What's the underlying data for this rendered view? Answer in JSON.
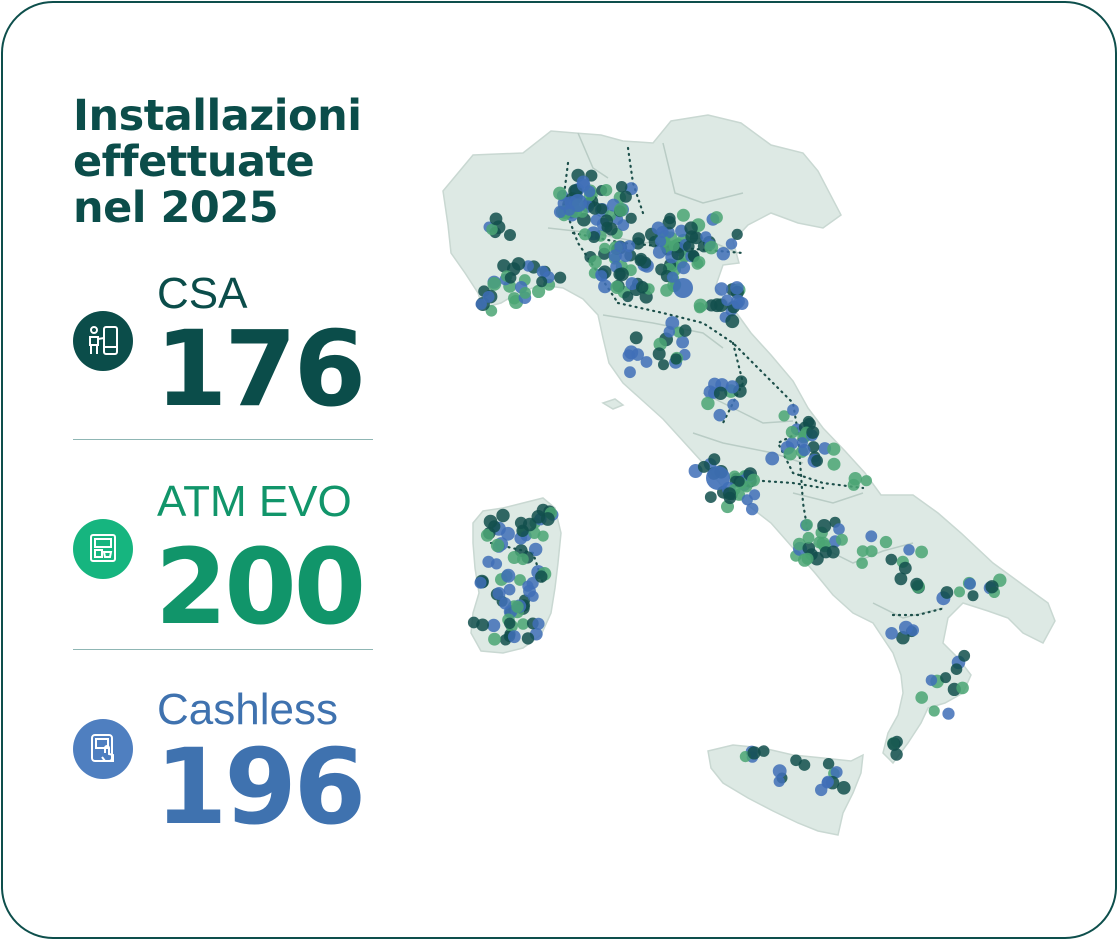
{
  "title": {
    "line1": "Installazioni",
    "line2": "effettuate",
    "line3": "nel 2025"
  },
  "stats": [
    {
      "label": "CSA",
      "value": "176",
      "icon": "kiosk-icon",
      "color": "#0b4d4a"
    },
    {
      "label": "ATM EVO",
      "value": "200",
      "icon": "atm-icon",
      "color": "#11956a"
    },
    {
      "label": "Cashless",
      "value": "196",
      "icon": "touch-terminal-icon",
      "color": "#3f72af"
    }
  ],
  "colors": {
    "border": "#0e4f4c",
    "map_fill": "#dde9e4",
    "dot_dark": "#124f4c",
    "dot_green": "#4aa573",
    "dot_blue": "#3f6fb7"
  }
}
